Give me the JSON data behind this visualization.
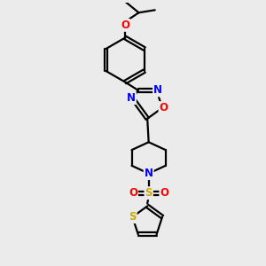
{
  "bg_color": "#ebebeb",
  "bond_color": "#000000",
  "atom_colors": {
    "N": "#0000ff",
    "O": "#ff0000",
    "S": "#ccaa00",
    "C": "#000000"
  },
  "line_width": 1.6,
  "font_size": 8.5
}
